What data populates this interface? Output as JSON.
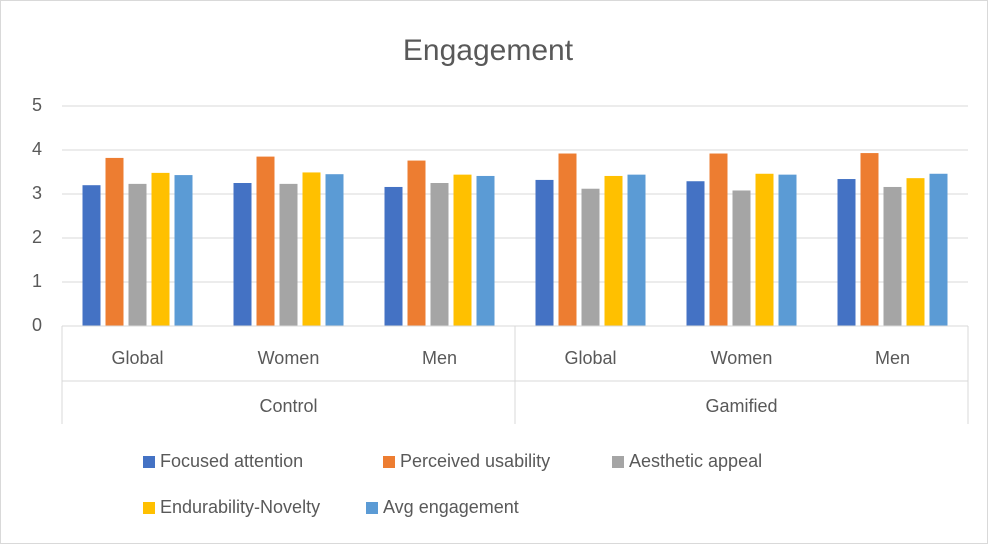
{
  "chart_data": {
    "type": "bar",
    "title": "Engagement",
    "groups": [
      {
        "label": "Control",
        "categories": [
          "Global",
          "Women",
          "Men"
        ]
      },
      {
        "label": "Gamified",
        "categories": [
          "Global",
          "Women",
          "Men"
        ]
      }
    ],
    "series": [
      {
        "name": "Focused attention",
        "color": "#4472c4",
        "values": [
          3.2,
          3.25,
          3.16,
          3.32,
          3.29,
          3.34
        ]
      },
      {
        "name": "Perceived usability",
        "color": "#ed7d31",
        "values": [
          3.82,
          3.85,
          3.76,
          3.92,
          3.92,
          3.93
        ]
      },
      {
        "name": "Aesthetic appeal",
        "color": "#a5a5a5",
        "values": [
          3.23,
          3.23,
          3.25,
          3.12,
          3.08,
          3.16
        ]
      },
      {
        "name": "Endurability-Novelty",
        "color": "#ffc000",
        "values": [
          3.48,
          3.49,
          3.44,
          3.41,
          3.46,
          3.36
        ]
      },
      {
        "name": "Avg engagement",
        "color": "#5b9bd5",
        "values": [
          3.43,
          3.45,
          3.41,
          3.44,
          3.44,
          3.46
        ]
      }
    ],
    "ylim": [
      0,
      5
    ],
    "yticks": [
      0,
      1,
      2,
      3,
      4,
      5
    ],
    "grid": true,
    "legend": "bottom"
  }
}
